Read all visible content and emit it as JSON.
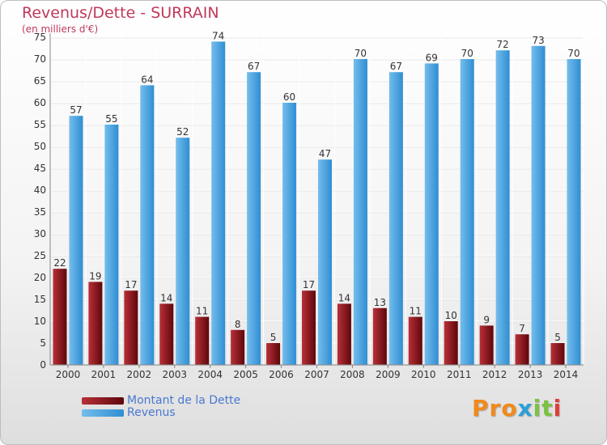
{
  "title": "Revenus/Dette - SURRAIN",
  "subtitle": "(en milliers d'€)",
  "logo": {
    "text": "Proxiti",
    "colors": [
      "#f08a1c",
      "#f08a1c",
      "#f08a1c",
      "#2aa0d8",
      "#7cc242",
      "#7cc242",
      "#e23b3b"
    ]
  },
  "colors": {
    "debt": "#7a0d12",
    "debt_light": "#b02a30",
    "revenue": "#3c9ad9",
    "revenue_light": "#6ab6ea",
    "title": "#c0395b",
    "legend_text": "#4a78d1"
  },
  "chart_data": {
    "type": "bar",
    "categories": [
      "2000",
      "2001",
      "2002",
      "2003",
      "2004",
      "2005",
      "2006",
      "2007",
      "2008",
      "2009",
      "2010",
      "2011",
      "2012",
      "2013",
      "2014"
    ],
    "series": [
      {
        "name": "Montant de la Dette",
        "values": [
          22,
          19,
          17,
          14,
          11,
          8,
          5,
          17,
          14,
          13,
          11,
          10,
          9,
          7,
          5
        ]
      },
      {
        "name": "Revenus",
        "values": [
          57,
          55,
          64,
          52,
          74,
          67,
          60,
          47,
          70,
          67,
          69,
          70,
          72,
          73,
          70
        ]
      }
    ],
    "ylim": [
      0,
      75
    ],
    "yticks": [
      0,
      5,
      10,
      15,
      20,
      25,
      30,
      35,
      40,
      45,
      50,
      55,
      60,
      65,
      70,
      75
    ],
    "grid": true,
    "legend": "bottom-left"
  }
}
